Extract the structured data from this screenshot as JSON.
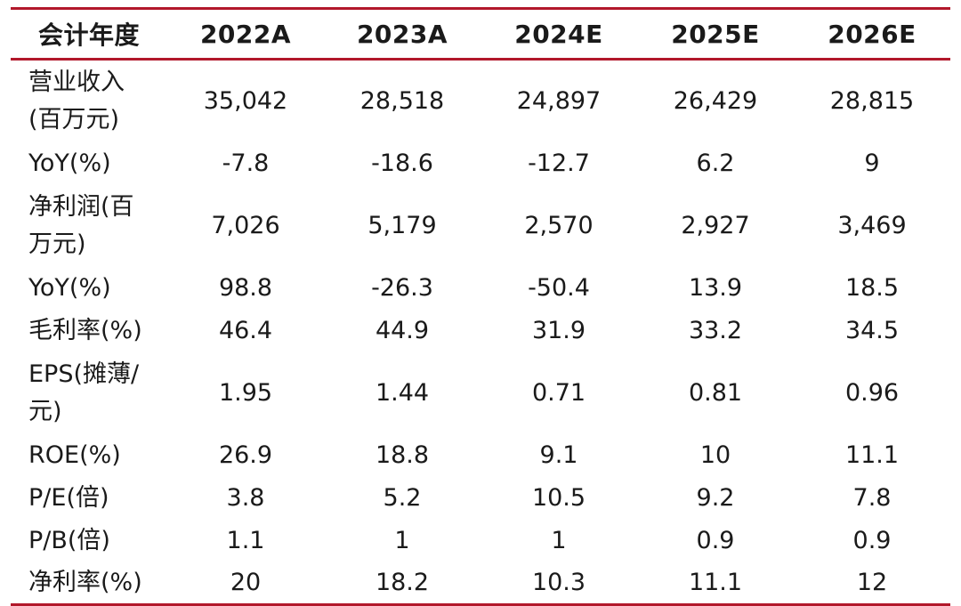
{
  "table": {
    "headers": [
      "会计年度",
      "2022A",
      "2023A",
      "2024E",
      "2025E",
      "2026E"
    ],
    "rows": [
      {
        "label": "营业收入\n(百万元)",
        "values": [
          "35,042",
          "28,518",
          "24,897",
          "26,429",
          "28,815"
        ]
      },
      {
        "label": "YoY(%)",
        "values": [
          "-7.8",
          "-18.6",
          "-12.7",
          "6.2",
          "9"
        ]
      },
      {
        "label": "净利润(百\n万元)",
        "values": [
          "7,026",
          "5,179",
          "2,570",
          "2,927",
          "3,469"
        ]
      },
      {
        "label": "YoY(%)",
        "values": [
          "98.8",
          "-26.3",
          "-50.4",
          "13.9",
          "18.5"
        ]
      },
      {
        "label": "毛利率(%)",
        "values": [
          "46.4",
          "44.9",
          "31.9",
          "33.2",
          "34.5"
        ]
      },
      {
        "label": "EPS(摊薄/\n元)",
        "values": [
          "1.95",
          "1.44",
          "0.71",
          "0.81",
          "0.96"
        ]
      },
      {
        "label": "ROE(%)",
        "values": [
          "26.9",
          "18.8",
          "9.1",
          "10",
          "11.1"
        ]
      },
      {
        "label": "P/E(倍)",
        "values": [
          "3.8",
          "5.2",
          "10.5",
          "9.2",
          "7.8"
        ]
      },
      {
        "label": "P/B(倍)",
        "values": [
          "1.1",
          "1",
          "1",
          "0.9",
          "0.9"
        ]
      },
      {
        "label": "净利率(%)",
        "values": [
          "20",
          "18.2",
          "10.3",
          "11.1",
          "12"
        ]
      }
    ]
  },
  "colors": {
    "rule": "#b2182b",
    "text": "#1a1a1a"
  }
}
